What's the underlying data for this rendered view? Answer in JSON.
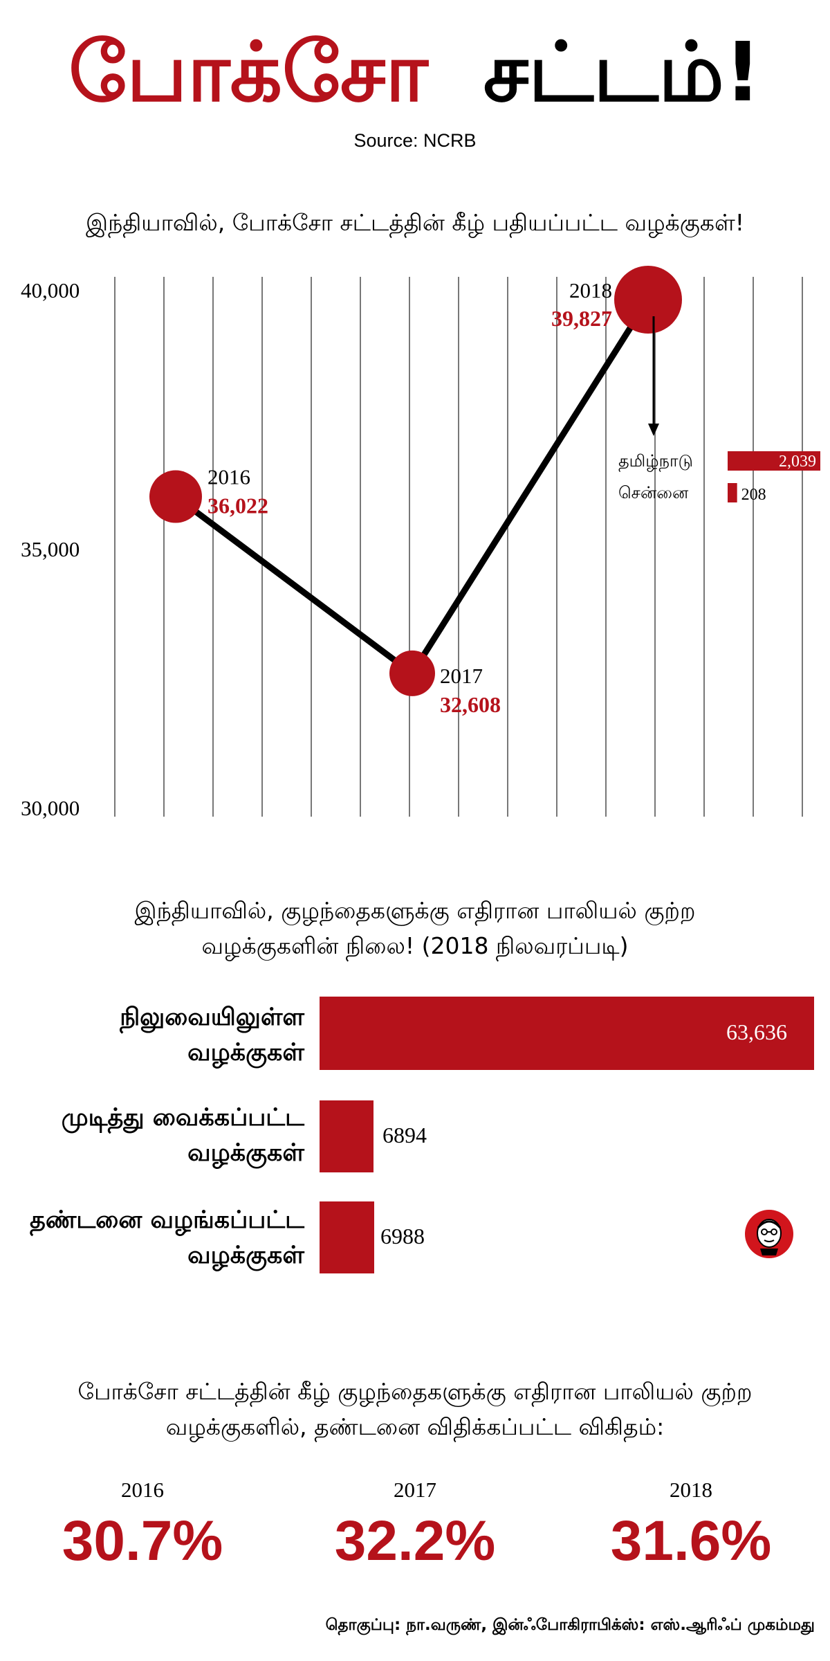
{
  "title": {
    "part1": "போக்சோ",
    "part2": "சட்டம்!"
  },
  "source": "Source: NCRB",
  "section1": {
    "heading": "இந்தியாவில், போக்சோ சட்டத்தின் கீழ் பதியப்பட்ட வழக்குகள்!"
  },
  "chart_data": [
    {
      "type": "line",
      "title": "இந்தியாவில், போக்சோ சட்டத்தின் கீழ் பதியப்பட்ட வழக்குகள்!",
      "x": [
        "2016",
        "2017",
        "2018"
      ],
      "values": [
        36022,
        32608,
        39827
      ],
      "value_labels": [
        "36,022",
        "32,608",
        "39,827"
      ],
      "ylim": [
        30000,
        40000
      ],
      "yticks": [
        40000,
        35000,
        30000
      ],
      "ytick_labels": [
        "40,000",
        "35,000",
        "30,000"
      ],
      "grid": "vertical lines",
      "line_color": "#000000",
      "marker_color": "#b5121b",
      "inset": {
        "type": "bar",
        "categories": [
          "தமிழ்நாடு",
          "சென்னை"
        ],
        "values": [
          2039,
          208
        ],
        "value_labels": [
          "2,039",
          "208"
        ]
      }
    },
    {
      "type": "bar",
      "orientation": "horizontal",
      "title": "இந்தியாவில், குழந்தைகளுக்கு எதிரான பாலியல் குற்ற வழக்குகளின் நிலை! (2018 நிலவரப்படி)",
      "categories": [
        "நிலுவையிலுள்ள வழக்குகள்",
        "முடித்து வைக்கப்பட்ட வழக்குகள்",
        "தண்டனை வழங்கப்பட்ட வழக்குகள்"
      ],
      "values": [
        63636,
        6894,
        6988
      ],
      "value_labels": [
        "63,636",
        "6894",
        "6988"
      ]
    },
    {
      "type": "table",
      "title": "போக்சோ சட்டத்தின் கீழ் குழந்தைகளுக்கு எதிரான பாலியல் குற்ற வழக்குகளில், தண்டனை விதிக்கப்பட்ட விகிதம்:",
      "categories": [
        "2016",
        "2017",
        "2018"
      ],
      "values": [
        30.7,
        32.2,
        31.6
      ],
      "value_labels": [
        "30.7%",
        "32.2%",
        "31.6%"
      ]
    }
  ],
  "section2": {
    "heading_line1": "இந்தியாவில், குழந்தைகளுக்கு எதிரான பாலியல் குற்ற",
    "heading_line2": "வழக்குகளின் நிலை! (2018 நிலவரப்படி)",
    "bars": [
      {
        "label_line1": "நிலுவையிலுள்ள",
        "label_line2": "வழக்குகள்",
        "value": "63,636"
      },
      {
        "label_line1": "முடித்து வைக்கப்பட்ட",
        "label_line2": "வழக்குகள்",
        "value": "6894"
      },
      {
        "label_line1": "தண்டனை வழங்கப்பட்ட",
        "label_line2": "வழக்குகள்",
        "value": "6988"
      }
    ]
  },
  "section3": {
    "heading_line1": "போக்சோ சட்டத்தின் கீழ் குழந்தைகளுக்கு எதிரான பாலியல் குற்ற",
    "heading_line2": "வழக்குகளில், தண்டனை விதிக்கப்பட்ட விகிதம்:",
    "items": [
      {
        "year": "2016",
        "pct": "30.7%"
      },
      {
        "year": "2017",
        "pct": "32.2%"
      },
      {
        "year": "2018",
        "pct": "31.6%"
      }
    ]
  },
  "credit": "தொகுப்பு: நா.வருண், இன்ஃபோகிராபிக்ஸ்: எஸ்.ஆரிஃப் முகம்மது",
  "colors": {
    "accent": "#b5121b",
    "text": "#000000",
    "background": "#ffffff"
  },
  "icons": [
    "mascot-logo-icon",
    "arrow-down-icon"
  ]
}
